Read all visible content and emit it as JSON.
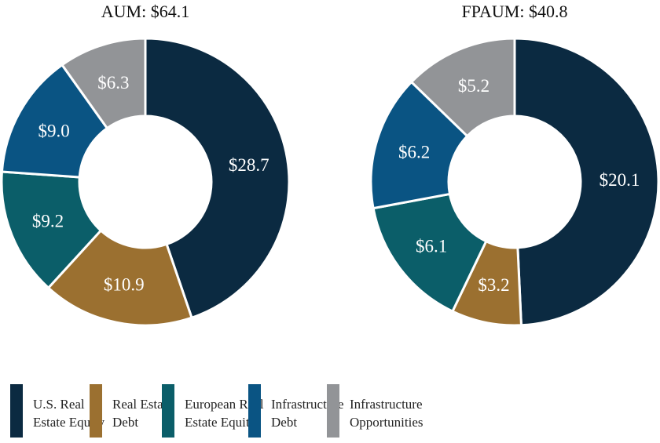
{
  "chart_data": [
    {
      "type": "pie",
      "variant": "donut",
      "title": "AUM: $64.1",
      "categories": [
        "U.S. Real Estate Equity",
        "Real Estate Debt",
        "European Real Estate Equity",
        "Infrastructure Debt",
        "Infrastructure Opportunities"
      ],
      "values": [
        28.7,
        10.9,
        9.2,
        9.0,
        6.3
      ],
      "labels": [
        "$28.7",
        "$10.9",
        "$9.2",
        "$9.0",
        "$6.3"
      ]
    },
    {
      "type": "pie",
      "variant": "donut",
      "title": "FPAUM: $40.8",
      "categories": [
        "U.S. Real Estate Equity",
        "Real Estate Debt",
        "European Real Estate Equity",
        "Infrastructure Debt",
        "Infrastructure Opportunities"
      ],
      "values": [
        20.1,
        3.2,
        6.1,
        6.2,
        5.2
      ],
      "labels": [
        "$20.1",
        "$3.2",
        "$6.1",
        "$6.2",
        "$5.2"
      ]
    }
  ],
  "legend": {
    "position": "bottom",
    "items": [
      {
        "label": "U.S. Real\nEstate Equity",
        "color": "#0b2a41"
      },
      {
        "label": "Real Estate\nDebt",
        "color": "#9b7030"
      },
      {
        "label": "European Real\nEstate Equity",
        "color": "#0b5e69"
      },
      {
        "label": "Infrastructure\nDebt",
        "color": "#0a5483"
      },
      {
        "label": "Infrastructure\nOpportunities",
        "color": "#929497"
      }
    ]
  }
}
